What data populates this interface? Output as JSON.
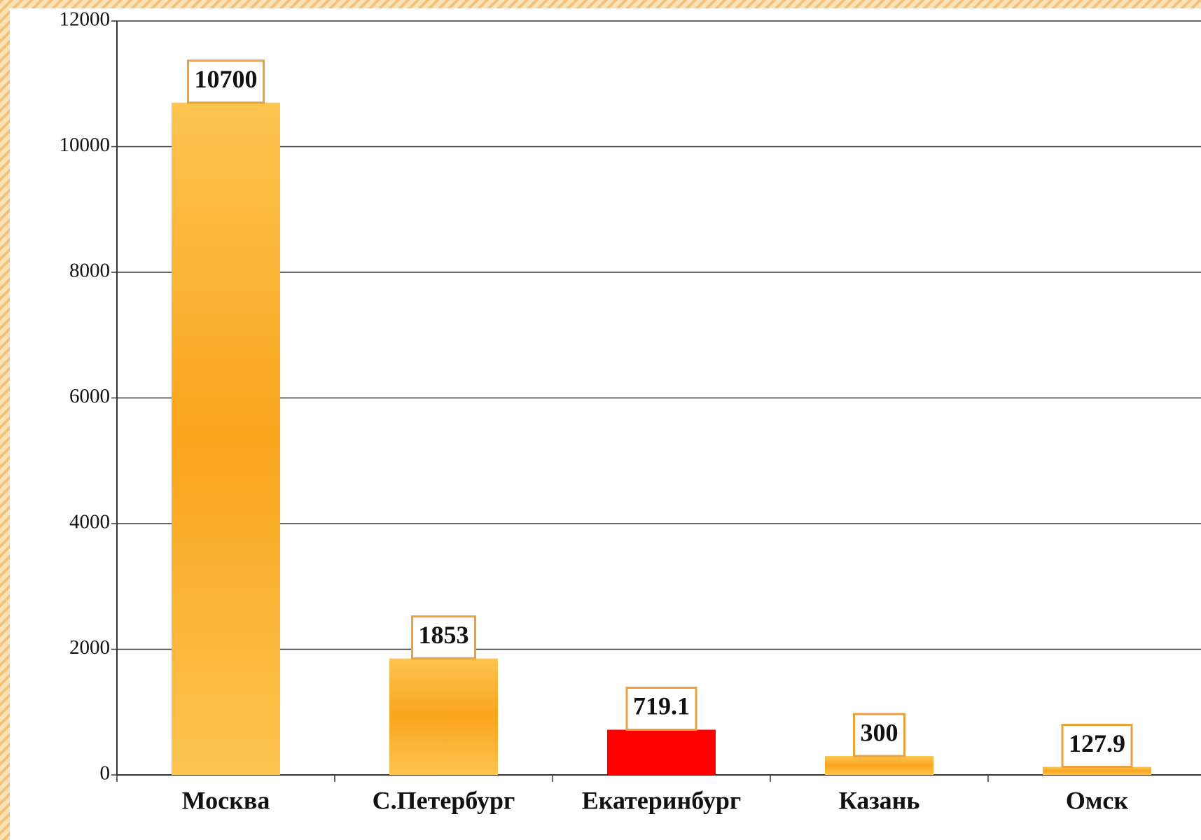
{
  "chart_data": {
    "type": "bar",
    "categories": [
      "Москва",
      "С.Петербург",
      "Екатеринбург",
      "Казань",
      "Омск"
    ],
    "values": [
      10700,
      1853,
      719.1,
      300,
      127.9
    ],
    "colors": [
      "#f9a51e",
      "#f9a51e",
      "#ff0000",
      "#f9a51e",
      "#f9a51e"
    ],
    "ylim": [
      0,
      12000
    ],
    "yticks": [
      0,
      2000,
      4000,
      6000,
      8000,
      10000,
      12000
    ],
    "grid": true
  }
}
